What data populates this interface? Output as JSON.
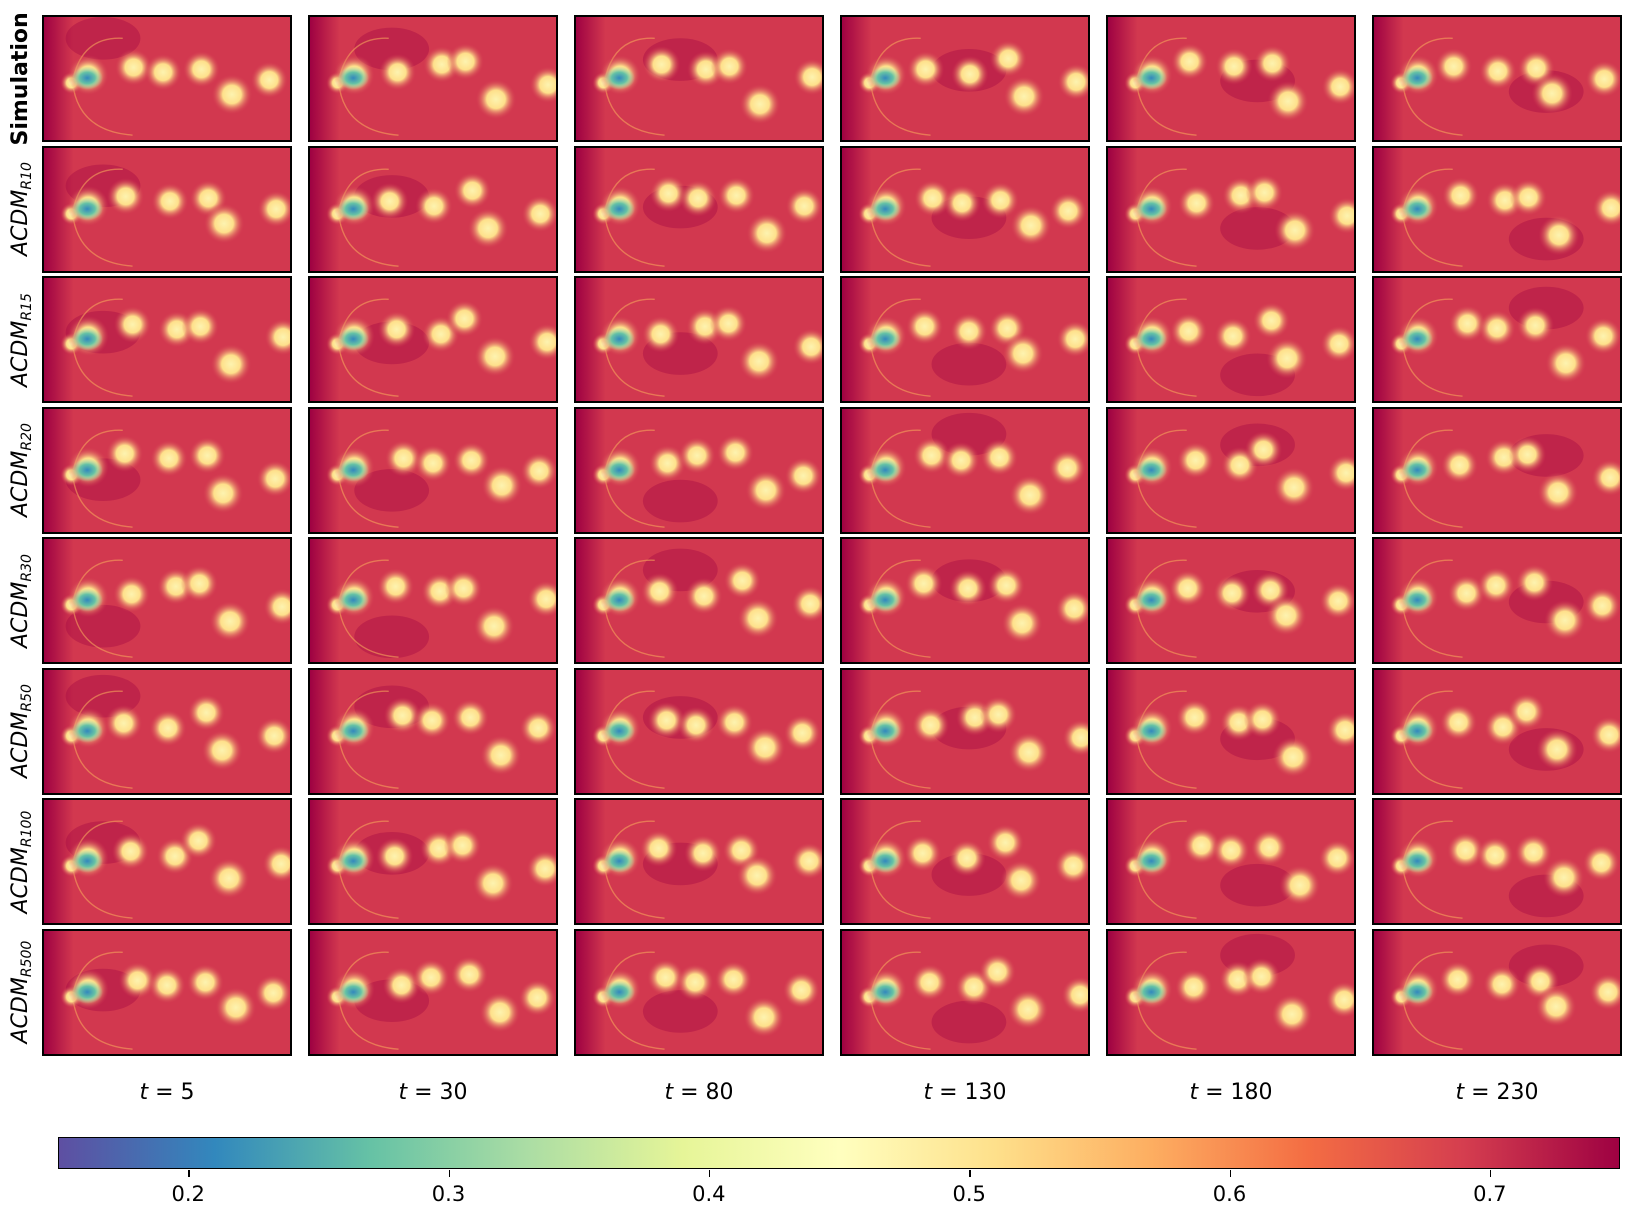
{
  "chart_data": {
    "type": "heatmap",
    "colormap": "Spectral_r",
    "colors": {
      "background_field": "#d2384f",
      "dark_region": "#9e0142",
      "vortex_core": "#fdf3b0",
      "low": "#5e4fa2",
      "high": "#9e0142"
    },
    "rows": [
      {
        "label": "Simulation",
        "italic": false,
        "bold": true,
        "subscript": ""
      },
      {
        "label": "ACDM",
        "italic": true,
        "bold": false,
        "subscript": "R10"
      },
      {
        "label": "ACDM",
        "italic": true,
        "bold": false,
        "subscript": "R15"
      },
      {
        "label": "ACDM",
        "italic": true,
        "bold": false,
        "subscript": "R20"
      },
      {
        "label": "ACDM",
        "italic": true,
        "bold": false,
        "subscript": "R30"
      },
      {
        "label": "ACDM",
        "italic": true,
        "bold": false,
        "subscript": "R50"
      },
      {
        "label": "ACDM",
        "italic": true,
        "bold": false,
        "subscript": "R100"
      },
      {
        "label": "ACDM",
        "italic": true,
        "bold": false,
        "subscript": "R500"
      }
    ],
    "columns": [
      {
        "var": "t",
        "value": "5"
      },
      {
        "var": "t",
        "value": "30"
      },
      {
        "var": "t",
        "value": "80"
      },
      {
        "var": "t",
        "value": "130"
      },
      {
        "var": "t",
        "value": "180"
      },
      {
        "var": "t",
        "value": "230"
      }
    ],
    "colorbar": {
      "range": [
        0.15,
        0.75
      ],
      "ticks": [
        "0.2",
        "0.3",
        "0.4",
        "0.5",
        "0.6",
        "0.7"
      ],
      "stops": [
        "#5e4fa2",
        "#3288bd",
        "#66c2a5",
        "#abdda4",
        "#e6f598",
        "#ffffbf",
        "#fee08b",
        "#fdae61",
        "#f46d43",
        "#d53e4f",
        "#9e0142"
      ]
    }
  }
}
